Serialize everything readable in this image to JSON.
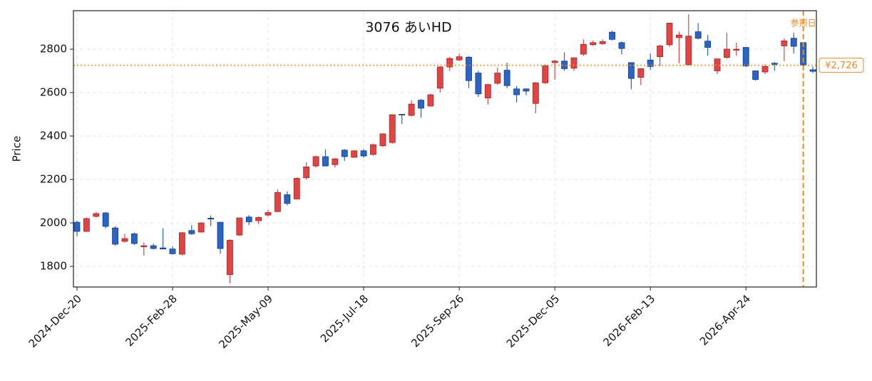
{
  "chart_data": {
    "type": "candlestick",
    "title": "3076  あいHD",
    "y_label": "Price",
    "x": [
      "2024-Dec-20",
      "2024-Dec-27",
      "2025-Jan-03",
      "2025-Jan-10",
      "2025-Jan-17",
      "2025-Jan-24",
      "2025-Jan-31",
      "2025-Feb-07",
      "2025-Feb-14",
      "2025-Feb-21",
      "2025-Feb-28",
      "2025-Mar-07",
      "2025-Mar-14",
      "2025-Mar-21",
      "2025-Mar-28",
      "2025-Apr-04",
      "2025-Apr-11",
      "2025-Apr-18",
      "2025-Apr-25",
      "2025-May-02",
      "2025-May-09",
      "2025-May-16",
      "2025-May-23",
      "2025-May-30",
      "2025-Jun-06",
      "2025-Jun-13",
      "2025-Jun-20",
      "2025-Jun-27",
      "2025-Jul-04",
      "2025-Jul-11",
      "2025-Jul-18",
      "2025-Jul-25",
      "2025-Aug-01",
      "2025-Aug-08",
      "2025-Aug-15",
      "2025-Aug-22",
      "2025-Aug-29",
      "2025-Sep-05",
      "2025-Sep-12",
      "2025-Sep-19",
      "2025-Sep-26",
      "2025-Oct-03",
      "2025-Oct-10",
      "2025-Oct-17",
      "2025-Oct-24",
      "2025-Oct-31",
      "2025-Nov-07",
      "2025-Nov-14",
      "2025-Nov-21",
      "2025-Nov-28",
      "2025-Dec-05",
      "2025-Dec-12",
      "2025-Dec-19",
      "2025-Dec-26",
      "2026-Jan-02",
      "2026-Jan-09",
      "2026-Jan-16",
      "2026-Jan-23",
      "2026-Jan-30",
      "2026-Feb-06",
      "2026-Feb-13",
      "2026-Feb-20",
      "2026-Feb-27",
      "2026-Mar-06",
      "2026-Mar-13",
      "2026-Mar-20",
      "2026-Mar-27",
      "2026-Apr-03",
      "2026-Apr-10",
      "2026-Apr-17",
      "2026-Apr-24",
      "2026-May-01",
      "2026-May-08",
      "2026-May-15",
      "2026-May-22",
      "2026-May-29",
      "2026-Jun-05",
      "2026-Jun-12"
    ],
    "open": [
      2003,
      1961,
      2030,
      2046,
      1977,
      1915,
      1950,
      1890,
      1895,
      1885,
      1880,
      1856,
      1965,
      1958,
      2022,
      2003,
      1762,
      1944,
      2027,
      2010,
      2036,
      2052,
      2130,
      2110,
      2208,
      2262,
      2305,
      2268,
      2335,
      2302,
      2332,
      2315,
      2355,
      2370,
      2500,
      2495,
      2565,
      2538,
      2620,
      2718,
      2750,
      2763,
      2690,
      2575,
      2643,
      2703,
      2617,
      2617,
      2550,
      2645,
      2738,
      2745,
      2712,
      2777,
      2820,
      2825,
      2878,
      2830,
      2738,
      2670,
      2750,
      2765,
      2820,
      2853,
      2728,
      2880,
      2837,
      2700,
      2762,
      2795,
      2808,
      2700,
      2695,
      2735,
      2815,
      2850,
      2830,
      2705
    ],
    "high": [
      2010,
      2025,
      2050,
      2050,
      1984,
      1950,
      1955,
      1910,
      1905,
      1975,
      1893,
      1957,
      1990,
      2003,
      2035,
      2005,
      1925,
      2025,
      2035,
      2030,
      2060,
      2155,
      2145,
      2210,
      2280,
      2310,
      2338,
      2298,
      2340,
      2335,
      2340,
      2365,
      2412,
      2500,
      2502,
      2565,
      2570,
      2595,
      2722,
      2765,
      2780,
      2768,
      2700,
      2640,
      2715,
      2738,
      2630,
      2620,
      2648,
      2730,
      2750,
      2785,
      2762,
      2845,
      2840,
      2845,
      2885,
      2835,
      2740,
      2712,
      2780,
      2820,
      2922,
      2880,
      2960,
      2920,
      2865,
      2757,
      2875,
      2830,
      2810,
      2702,
      2730,
      2740,
      2850,
      2875,
      2832,
      2720
    ],
    "low": [
      1938,
      1958,
      2025,
      1975,
      1895,
      1910,
      1898,
      1850,
      1878,
      1878,
      1855,
      1852,
      1945,
      1955,
      1985,
      1858,
      1722,
      1940,
      1990,
      1995,
      2030,
      2050,
      2080,
      2108,
      2200,
      2255,
      2260,
      2255,
      2285,
      2300,
      2300,
      2310,
      2350,
      2365,
      2455,
      2490,
      2485,
      2535,
      2600,
      2700,
      2745,
      2620,
      2580,
      2545,
      2635,
      2620,
      2555,
      2588,
      2505,
      2640,
      2660,
      2700,
      2700,
      2770,
      2815,
      2820,
      2840,
      2775,
      2615,
      2635,
      2705,
      2722,
      2810,
      2735,
      2725,
      2845,
      2770,
      2685,
      2755,
      2770,
      2718,
      2655,
      2685,
      2700,
      2745,
      2780,
      2715,
      2690
    ],
    "close": [
      1961,
      2020,
      2043,
      1984,
      1902,
      1928,
      1905,
      1895,
      1882,
      1880,
      1858,
      1955,
      1950,
      2000,
      2018,
      1882,
      1920,
      2023,
      2005,
      2025,
      2048,
      2140,
      2090,
      2205,
      2258,
      2305,
      2262,
      2295,
      2305,
      2332,
      2308,
      2360,
      2410,
      2498,
      2497,
      2547,
      2528,
      2590,
      2718,
      2757,
      2765,
      2655,
      2594,
      2637,
      2690,
      2632,
      2590,
      2607,
      2645,
      2723,
      2745,
      2710,
      2760,
      2822,
      2830,
      2835,
      2845,
      2803,
      2665,
      2710,
      2720,
      2815,
      2920,
      2865,
      2860,
      2850,
      2808,
      2755,
      2800,
      2800,
      2722,
      2660,
      2720,
      2730,
      2838,
      2813,
      2726,
      2698
    ],
    "up_color": "#e04444",
    "down_color": "#2a64c4",
    "ylim": [
      1705,
      2977
    ],
    "yticks": [
      1800,
      2000,
      2200,
      2400,
      2600,
      2800
    ],
    "xticks": [
      "2024-Dec-20",
      "2025-Feb-28",
      "2025-May-09",
      "2025-Jul-18",
      "2025-Sep-26",
      "2025-Dec-05",
      "2026-Feb-13",
      "2026-Apr-24"
    ],
    "grid": true,
    "reference": {
      "date": "2026-Jun-05",
      "date_label": "参照日",
      "price": 2726,
      "price_label": "¥2,726",
      "color": "#f08a24"
    }
  }
}
